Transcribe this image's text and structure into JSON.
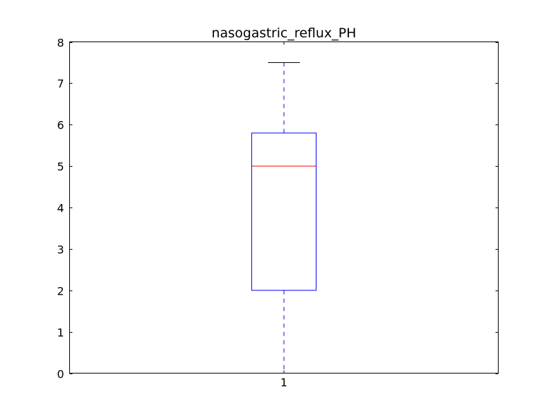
{
  "chart_data": {
    "type": "box",
    "title": "nasogastric_reflux_PH",
    "xlabel": "",
    "ylabel": "",
    "categories": [
      "1"
    ],
    "ylim": [
      0,
      8
    ],
    "yticks": [
      "0",
      "1",
      "2",
      "3",
      "4",
      "5",
      "6",
      "7",
      "8"
    ],
    "grid": false,
    "series": [
      {
        "whisker_low": 0,
        "q1": 2,
        "median": 5,
        "q3": 5.8,
        "whisker_high": 7.5
      }
    ],
    "colors": {
      "box": "#0000ff",
      "median": "#ff0000",
      "whisker": "#0000ff",
      "cap": "#000000",
      "axes": "#000000"
    }
  }
}
